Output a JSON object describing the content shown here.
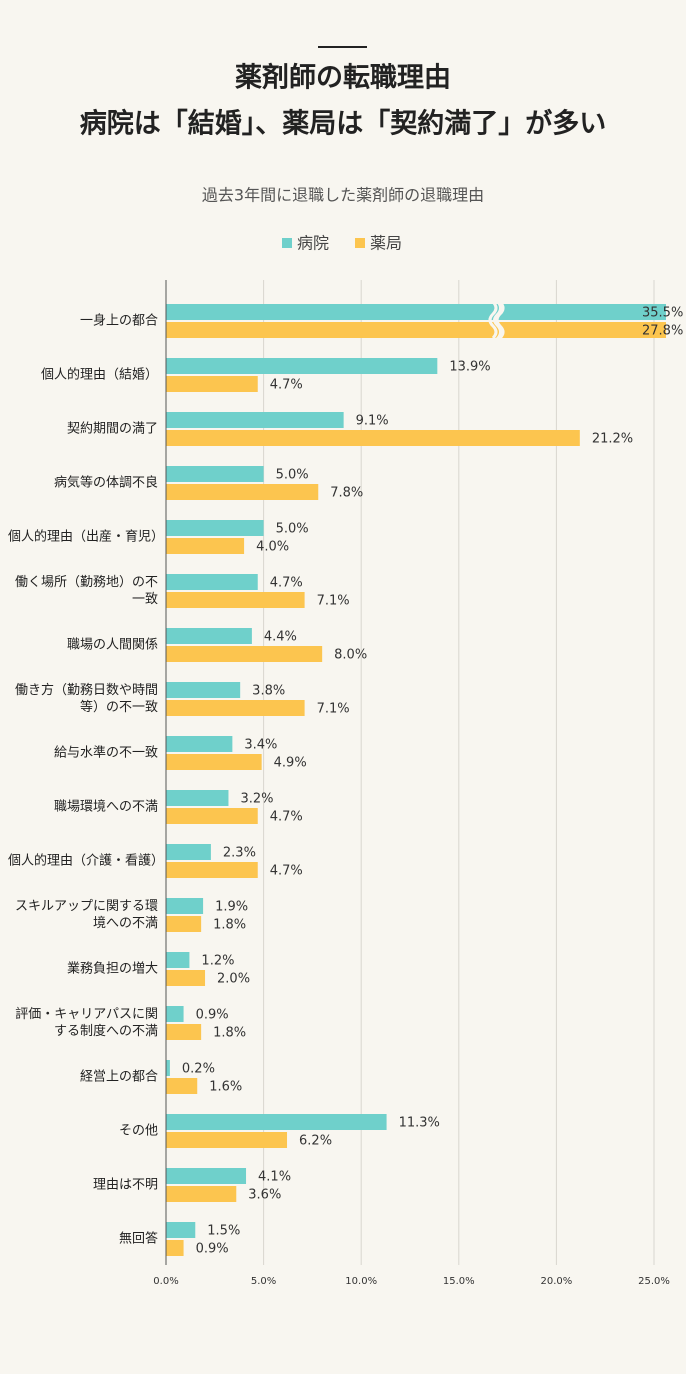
{
  "chart_data": {
    "type": "hbar",
    "title": [
      "薬剤師の転職理由",
      "病院は「結婚」、薬局は「契約満了」が多い"
    ],
    "subtitle": "過去3年間に退職した薬剤師の退職理由",
    "categories": [
      "一身上の都合",
      "個人的理由（結婚）",
      "契約期間の満了",
      "病気等の体調不良",
      "個人的理由（出産・育児）",
      "働く場所（勤務地）の不一致",
      "職場の人間関係",
      "働き方（勤務日数や時間等）の不一致",
      "給与水準の不一致",
      "職場環境への不満",
      "個人的理由（介護・看護）",
      "スキルアップに関する環境への不満",
      "業務負担の増大",
      "評価・キャリアパスに関する制度への不満",
      "経営上の都合",
      "その他",
      "理由は不明",
      "無回答"
    ],
    "series": [
      {
        "name": "病院",
        "color": "#6fd0cb",
        "values": [
          35.5,
          13.9,
          9.1,
          5.0,
          5.0,
          4.7,
          4.4,
          3.8,
          3.4,
          3.2,
          2.3,
          1.9,
          1.2,
          0.9,
          0.2,
          11.3,
          4.1,
          1.5
        ],
        "value_labels": [
          "35.5%",
          "13.9%",
          "9.1%",
          "5.0%",
          "5.0%",
          "4.7%",
          "4.4%",
          "3.8%",
          "3.4%",
          "3.2%",
          "2.3%",
          "1.9%",
          "1.2%",
          "0.9%",
          "0.2%",
          "11.3%",
          "4.1%",
          "1.5%"
        ]
      },
      {
        "name": "薬局",
        "color": "#fcc54f",
        "values": [
          27.8,
          4.7,
          21.2,
          7.8,
          4.0,
          7.1,
          8.0,
          7.1,
          4.9,
          4.7,
          4.7,
          1.8,
          2.0,
          1.8,
          1.6,
          6.2,
          3.6,
          0.9
        ],
        "value_labels": [
          "27.8%",
          "4.7%",
          "21.2%",
          "7.8%",
          "4.0%",
          "7.1%",
          "8.0%",
          "7.1%",
          "4.9%",
          "4.7%",
          "4.7%",
          "1.8%",
          "2.0%",
          "1.8%",
          "1.6%",
          "6.2%",
          "3.6%",
          "0.9%"
        ]
      }
    ],
    "xlim": [
      0,
      25
    ],
    "xticks": [
      {
        "value": 0,
        "label": "0.0%"
      },
      {
        "value": 5,
        "label": "5.0%"
      },
      {
        "value": 10,
        "label": "10.0%"
      },
      {
        "value": 15,
        "label": "15.0%"
      },
      {
        "value": 20,
        "label": "20.0%"
      },
      {
        "value": 25,
        "label": "25.0%"
      }
    ],
    "grid": true
  }
}
